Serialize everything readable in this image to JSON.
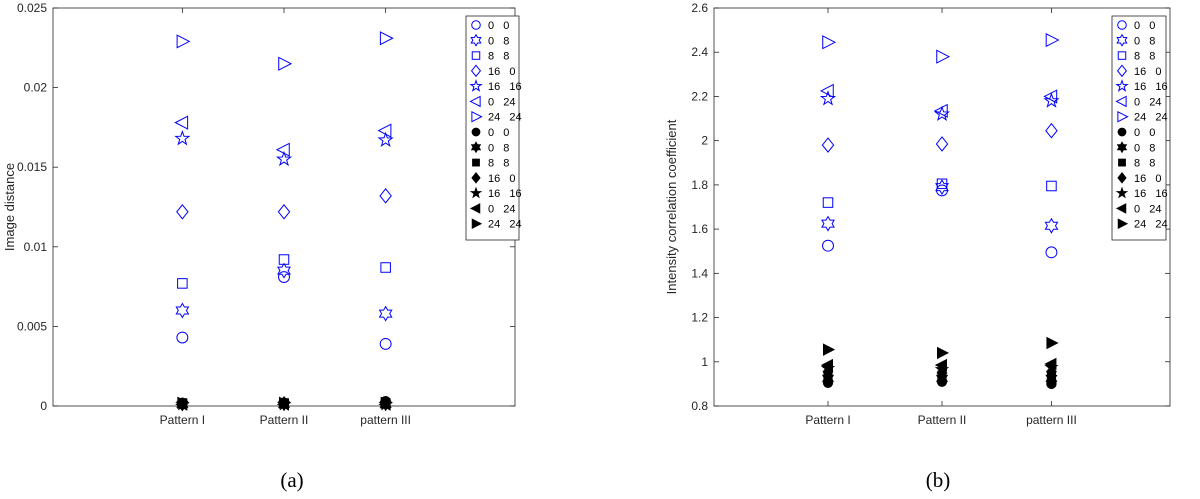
{
  "captions": [
    "(a)",
    "(b)"
  ],
  "chart_data": [
    {
      "type": "scatter",
      "title": "",
      "xlabel": "",
      "ylabel": "Image distance",
      "categories": [
        "Pattern I",
        "Pattern II",
        "pattern III"
      ],
      "ylim": [
        0,
        0.025
      ],
      "yticks": [
        0,
        0.005,
        0.01,
        0.015,
        0.02,
        0.025
      ],
      "ytick_labels": [
        "0",
        "0.005",
        "0.01",
        "0.015",
        "0.02",
        "0.025"
      ],
      "grid": false,
      "legend_position": "top-right",
      "series": [
        {
          "name": "0   0",
          "marker": "circle",
          "filled": false,
          "color": "#0000ff",
          "values": [
            0.0043,
            0.0081,
            0.0039
          ]
        },
        {
          "name": "0   8",
          "marker": "hexagram",
          "filled": false,
          "color": "#0000ff",
          "values": [
            0.006,
            0.0085,
            0.0058
          ]
        },
        {
          "name": "8   8",
          "marker": "square",
          "filled": false,
          "color": "#0000ff",
          "values": [
            0.0077,
            0.0092,
            0.0087
          ]
        },
        {
          "name": "16   0",
          "marker": "diamond",
          "filled": false,
          "color": "#0000ff",
          "values": [
            0.0122,
            0.0122,
            0.0132
          ]
        },
        {
          "name": "16   16",
          "marker": "pentagram",
          "filled": false,
          "color": "#0000ff",
          "values": [
            0.0168,
            0.0155,
            0.0167
          ]
        },
        {
          "name": "0   24",
          "marker": "triangle-left",
          "filled": false,
          "color": "#0000ff",
          "values": [
            0.0178,
            0.0161,
            0.0173
          ]
        },
        {
          "name": "24   24",
          "marker": "triangle-right",
          "filled": false,
          "color": "#0000ff",
          "values": [
            0.0229,
            0.0215,
            0.0231
          ]
        },
        {
          "name": "0   0",
          "marker": "circle",
          "filled": true,
          "color": "#000000",
          "values": [
            0.0002,
            0.0002,
            0.0003
          ]
        },
        {
          "name": "0   8",
          "marker": "hexagram",
          "filled": true,
          "color": "#000000",
          "values": [
            0.0001,
            0.0001,
            0.0001
          ]
        },
        {
          "name": "8   8",
          "marker": "square",
          "filled": true,
          "color": "#000000",
          "values": [
            0.0002,
            0.0002,
            0.0002
          ]
        },
        {
          "name": "16   0",
          "marker": "diamond",
          "filled": true,
          "color": "#000000",
          "values": [
            0.0001,
            0.0002,
            0.0002
          ]
        },
        {
          "name": "16   16",
          "marker": "pentagram",
          "filled": true,
          "color": "#000000",
          "values": [
            0.0001,
            0.0001,
            0.0001
          ]
        },
        {
          "name": "0   24",
          "marker": "triangle-left",
          "filled": true,
          "color": "#000000",
          "values": [
            0.0001,
            0.0001,
            0.0001
          ]
        },
        {
          "name": "24   24",
          "marker": "triangle-right",
          "filled": true,
          "color": "#000000",
          "values": [
            0.0002,
            0.0002,
            0.0002
          ]
        }
      ]
    },
    {
      "type": "scatter",
      "title": "",
      "xlabel": "",
      "ylabel": "Intensity correlation coefficient",
      "categories": [
        "Pattern I",
        "Pattern II",
        "pattern III"
      ],
      "ylim": [
        0.8,
        2.6
      ],
      "yticks": [
        0.8,
        1,
        1.2,
        1.4,
        1.6,
        1.8,
        2,
        2.2,
        2.4,
        2.6
      ],
      "ytick_labels": [
        "0.8",
        "1",
        "1.2",
        "1.4",
        "1.6",
        "1.8",
        "2",
        "2.2",
        "2.4",
        "2.6"
      ],
      "grid": false,
      "legend_position": "top-right",
      "series": [
        {
          "name": "0   0",
          "marker": "circle",
          "filled": false,
          "color": "#0000ff",
          "values": [
            1.525,
            1.775,
            1.495
          ]
        },
        {
          "name": "0   8",
          "marker": "hexagram",
          "filled": false,
          "color": "#0000ff",
          "values": [
            1.625,
            1.79,
            1.615
          ]
        },
        {
          "name": "8   8",
          "marker": "square",
          "filled": false,
          "color": "#0000ff",
          "values": [
            1.72,
            1.805,
            1.795
          ]
        },
        {
          "name": "16   0",
          "marker": "diamond",
          "filled": false,
          "color": "#0000ff",
          "values": [
            1.98,
            1.985,
            2.045
          ]
        },
        {
          "name": "16   16",
          "marker": "pentagram",
          "filled": false,
          "color": "#0000ff",
          "values": [
            2.19,
            2.12,
            2.18
          ]
        },
        {
          "name": "0   24",
          "marker": "triangle-left",
          "filled": false,
          "color": "#0000ff",
          "values": [
            2.225,
            2.135,
            2.2
          ]
        },
        {
          "name": "24   24",
          "marker": "triangle-right",
          "filled": false,
          "color": "#0000ff",
          "values": [
            2.445,
            2.38,
            2.455
          ]
        },
        {
          "name": "0   0",
          "marker": "circle",
          "filled": true,
          "color": "#000000",
          "values": [
            0.905,
            0.91,
            0.9
          ]
        },
        {
          "name": "0   8",
          "marker": "hexagram",
          "filled": true,
          "color": "#000000",
          "values": [
            0.925,
            0.925,
            0.925
          ]
        },
        {
          "name": "8   8",
          "marker": "square",
          "filled": true,
          "color": "#000000",
          "values": [
            0.94,
            0.94,
            0.94
          ]
        },
        {
          "name": "16   0",
          "marker": "diamond",
          "filled": true,
          "color": "#000000",
          "values": [
            0.955,
            0.95,
            0.955
          ]
        },
        {
          "name": "16   16",
          "marker": "pentagram",
          "filled": true,
          "color": "#000000",
          "values": [
            0.97,
            0.965,
            0.975
          ]
        },
        {
          "name": "0   24",
          "marker": "triangle-left",
          "filled": true,
          "color": "#000000",
          "values": [
            0.985,
            0.985,
            0.99
          ]
        },
        {
          "name": "24   24",
          "marker": "triangle-right",
          "filled": true,
          "color": "#000000",
          "values": [
            1.055,
            1.04,
            1.085
          ]
        }
      ]
    }
  ]
}
